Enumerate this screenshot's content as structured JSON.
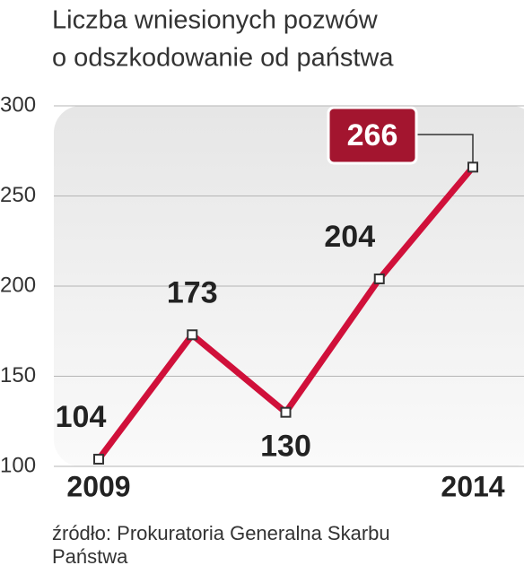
{
  "chart_data": {
    "type": "line",
    "title": [
      "Liczba wniesionych pozwów",
      "o odszkodowanie od państwa"
    ],
    "categories": [
      "2009",
      null,
      null,
      null,
      "2014"
    ],
    "series": [
      {
        "name": null,
        "color": "#d0103a",
        "values": [
          104,
          173,
          130,
          204,
          266
        ]
      }
    ],
    "highlight_index": 4,
    "highlight_color": "#a3152f",
    "ylim": [
      100,
      300
    ],
    "yticks": [
      100,
      150,
      200,
      250,
      300
    ],
    "grid": true,
    "source": [
      "źródło: Prokuratoria Generalna Skarbu",
      "Państwa"
    ]
  }
}
